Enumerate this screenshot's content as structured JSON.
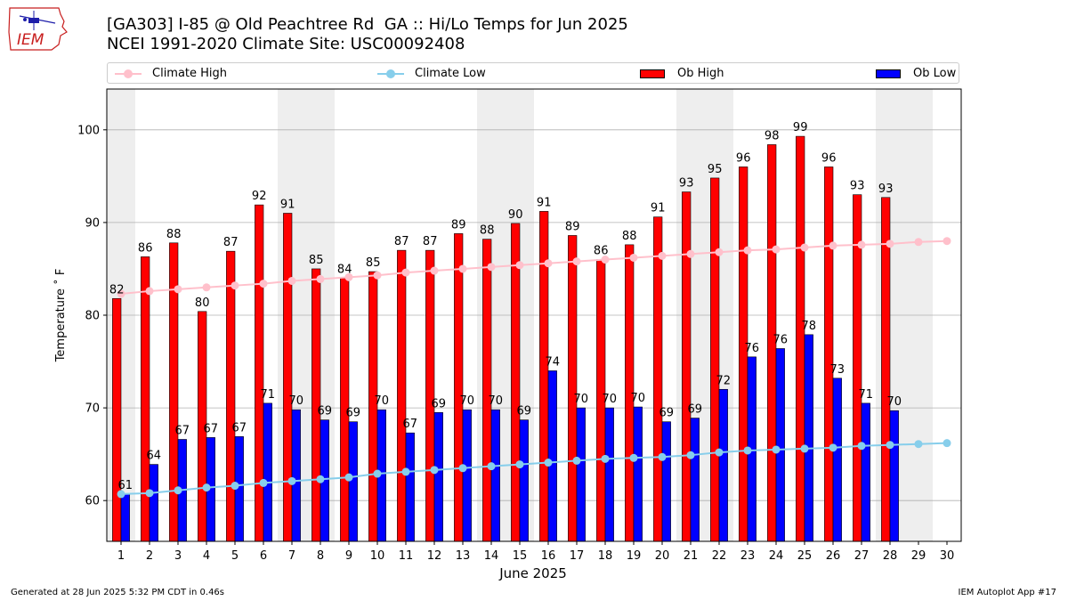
{
  "header": {
    "title": "[GA303] I-85 @ Old Peachtree Rd  GA :: Hi/Lo Temps for Jun 2025",
    "subtitle": "NCEI 1991-2020 Climate Site: USC00092408",
    "logo_text": "IEM"
  },
  "legend": {
    "climate_high": "Climate High",
    "climate_low": "Climate Low",
    "ob_high": "Ob High",
    "ob_low": "Ob Low"
  },
  "colors": {
    "climate_high": "#ffc0cb",
    "climate_low": "#87ceeb",
    "ob_high": "#ff0000",
    "ob_low": "#0000ff",
    "weekend_band": "#eeeeee",
    "grid": "#b0b0b0"
  },
  "footer": {
    "generated": "Generated at 28 Jun 2025 5:32 PM CDT in 0.46s",
    "app": "IEM Autoplot App #17"
  },
  "chart_data": {
    "type": "bar",
    "xlabel": "June 2025",
    "ylabel": "Temperature ˚ F",
    "ylim": [
      55.6,
      104.4
    ],
    "xlim": [
      0.5,
      30.5
    ],
    "yticks": [
      60,
      70,
      80,
      90,
      100
    ],
    "categories": [
      "1",
      "2",
      "3",
      "4",
      "5",
      "6",
      "7",
      "8",
      "9",
      "10",
      "11",
      "12",
      "13",
      "14",
      "15",
      "16",
      "17",
      "18",
      "19",
      "20",
      "21",
      "22",
      "23",
      "24",
      "25",
      "26",
      "27",
      "28",
      "29",
      "30"
    ],
    "grid": "horizontal",
    "legend_position": "top",
    "weekend_days": [
      1,
      7,
      8,
      14,
      15,
      21,
      22,
      28,
      29
    ],
    "series": [
      {
        "name": "Ob High",
        "kind": "bar",
        "values": [
          81.8,
          86.3,
          87.8,
          80.4,
          86.9,
          91.9,
          91.0,
          85.0,
          84.0,
          84.7,
          87.0,
          87.0,
          88.8,
          88.2,
          89.9,
          91.2,
          88.6,
          86.0,
          87.6,
          90.6,
          93.3,
          94.8,
          96.0,
          98.4,
          99.3,
          96.0,
          93.0,
          92.7,
          null,
          null
        ],
        "labels": [
          "82",
          "86",
          "88",
          "80",
          "87",
          "92",
          "91",
          "85",
          "84",
          "85",
          "87",
          "87",
          "89",
          "88",
          "90",
          "91",
          "89",
          "86",
          "88",
          "91",
          "93",
          "95",
          "96",
          "98",
          "99",
          "96",
          "93",
          "93",
          null,
          null
        ]
      },
      {
        "name": "Ob Low",
        "kind": "bar",
        "values": [
          60.7,
          63.9,
          66.6,
          66.8,
          66.9,
          70.5,
          69.8,
          68.7,
          68.5,
          69.8,
          67.3,
          69.5,
          69.8,
          69.8,
          68.7,
          74.0,
          70.0,
          70.0,
          70.1,
          68.5,
          68.9,
          72.0,
          75.5,
          76.4,
          77.9,
          73.2,
          70.5,
          69.7,
          null,
          null
        ],
        "labels": [
          "61",
          "64",
          "67",
          "67",
          "67",
          "71",
          "70",
          "69",
          "69",
          "70",
          "67",
          "69",
          "70",
          "70",
          "69",
          "74",
          "70",
          "70",
          "70",
          "69",
          "69",
          "72",
          "76",
          "76",
          "78",
          "73",
          "71",
          "70",
          null,
          null
        ]
      },
      {
        "name": "Climate High",
        "kind": "line",
        "values": [
          82.3,
          82.6,
          82.8,
          83.0,
          83.2,
          83.4,
          83.7,
          83.9,
          84.1,
          84.3,
          84.6,
          84.8,
          85.0,
          85.2,
          85.4,
          85.6,
          85.8,
          86.0,
          86.2,
          86.4,
          86.6,
          86.8,
          87.0,
          87.1,
          87.3,
          87.5,
          87.6,
          87.7,
          87.9,
          88.0
        ]
      },
      {
        "name": "Climate Low",
        "kind": "line",
        "values": [
          60.7,
          60.8,
          61.1,
          61.4,
          61.6,
          61.9,
          62.1,
          62.3,
          62.5,
          62.9,
          63.1,
          63.3,
          63.5,
          63.7,
          63.9,
          64.1,
          64.3,
          64.5,
          64.6,
          64.7,
          64.9,
          65.2,
          65.4,
          65.5,
          65.6,
          65.7,
          65.9,
          66.0,
          66.1,
          66.2
        ]
      }
    ]
  }
}
